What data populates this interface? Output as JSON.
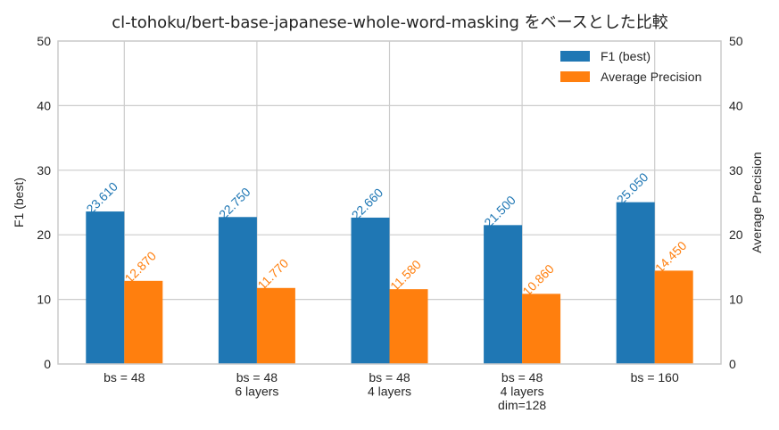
{
  "chart_data": {
    "type": "bar",
    "title": "cl-tohoku/bert-base-japanese-whole-word-masking をベースとした比較",
    "categories": [
      [
        "bs = 48"
      ],
      [
        "bs = 48",
        "6 layers"
      ],
      [
        "bs = 48",
        "4 layers"
      ],
      [
        "bs = 48",
        "4 layers",
        "dim=128"
      ],
      [
        "bs = 160"
      ]
    ],
    "series": [
      {
        "name": "F1 (best)",
        "axis": "left",
        "color": "#1f77b4",
        "values": [
          23.61,
          22.75,
          22.66,
          21.5,
          25.05
        ],
        "labels": [
          "23.610",
          "22.750",
          "22.660",
          "21.500",
          "25.050"
        ]
      },
      {
        "name": "Average Precision",
        "axis": "right",
        "color": "#ff7f0e",
        "values": [
          12.87,
          11.77,
          11.58,
          10.86,
          14.45
        ],
        "labels": [
          "12.870",
          "11.770",
          "11.580",
          "10.860",
          "14.450"
        ]
      }
    ],
    "ylabel_left": "F1 (best)",
    "ylabel_right": "Average Precision",
    "ylim": [
      0,
      50
    ],
    "yticks": [
      "0",
      "10",
      "20",
      "30",
      "40",
      "50"
    ],
    "grid": true,
    "legend": "top-right"
  }
}
